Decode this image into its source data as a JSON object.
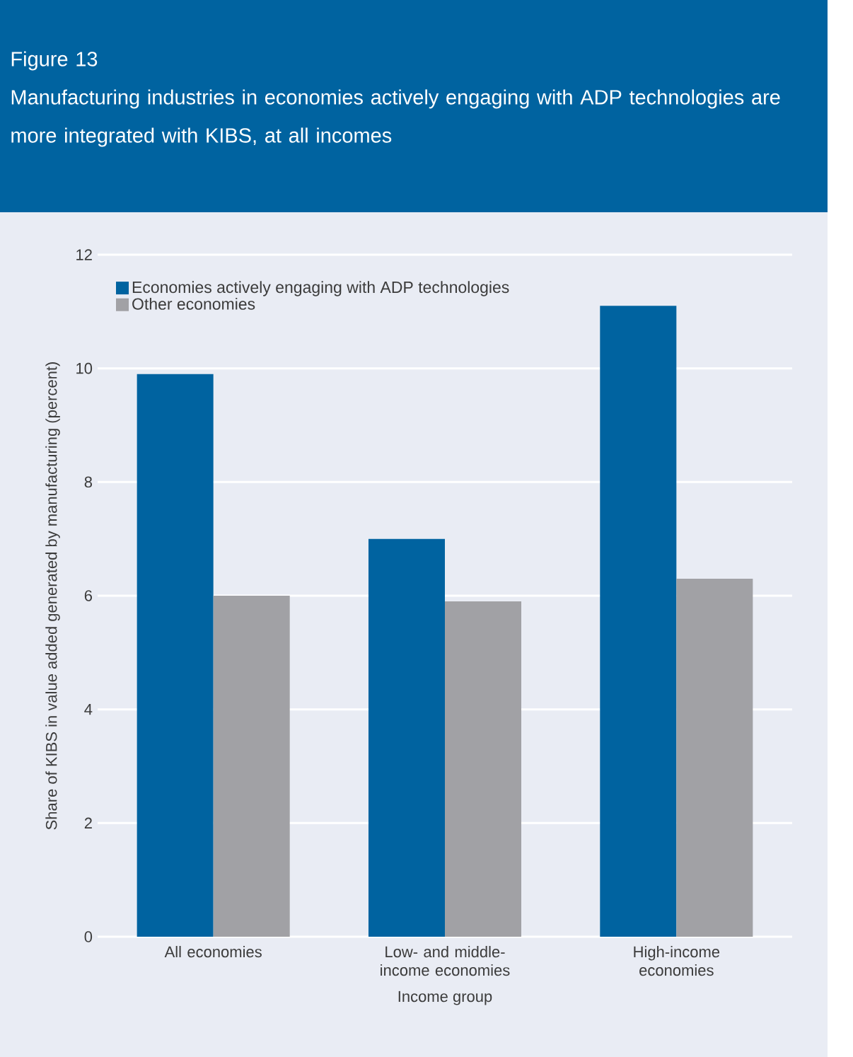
{
  "chart_data": {
    "type": "bar",
    "title": "Figure 13",
    "subtitle": "Manufacturing industries in economies actively engaging with ADP technologies are more integrated with KIBS, at all incomes",
    "xlabel": "Income group",
    "ylabel": "Share of KIBS in value added generated by manufacturing (percent)",
    "categories": [
      "All economies",
      "Low- and middle-income economies",
      "High-income economies"
    ],
    "series": [
      {
        "name": "Economies actively engaging with ADP technologies",
        "color": "#0063a0",
        "values": [
          9.9,
          7.0,
          11.1
        ]
      },
      {
        "name": "Other economies",
        "color": "#a1a1a5",
        "values": [
          6.0,
          5.9,
          6.3
        ]
      }
    ],
    "ylim": [
      0,
      12
    ],
    "yticks": [
      0,
      2,
      4,
      6,
      8,
      10,
      12
    ],
    "grid": "y",
    "legend": "top left"
  }
}
